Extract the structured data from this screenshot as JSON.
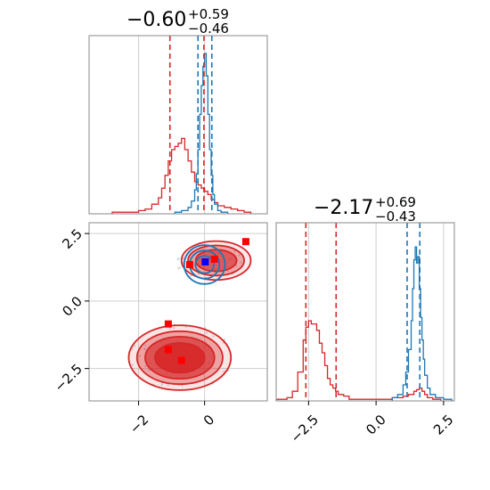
{
  "chart_data": [
    {
      "panel": "top-left",
      "type": "histogram",
      "title_main": "−0.60",
      "title_sup": "+0.59",
      "title_sub": "−0.46",
      "xlim": [
        -3.5,
        1.9
      ],
      "grid": true,
      "x_ticks_vertical_lines": [
        -2,
        0
      ],
      "series": [
        {
          "color": "#d62728",
          "step_x": [
            -2.8,
            -2.4,
            -2.0,
            -1.8,
            -1.6,
            -1.4,
            -1.3,
            -1.2,
            -1.1,
            -1.0,
            -0.9,
            -0.8,
            -0.7,
            -0.6,
            -0.5,
            -0.4,
            -0.3,
            -0.2,
            -0.1,
            0.0,
            0.1,
            0.2,
            0.3,
            0.4,
            0.6,
            0.8,
            1.0,
            1.2,
            1.4
          ],
          "step_h": [
            0.01,
            0.01,
            0.02,
            0.03,
            0.06,
            0.1,
            0.16,
            0.24,
            0.33,
            0.4,
            0.42,
            0.44,
            0.47,
            0.4,
            0.33,
            0.26,
            0.2,
            0.18,
            0.16,
            0.14,
            0.12,
            0.09,
            0.07,
            0.05,
            0.04,
            0.03,
            0.02,
            0.01,
            0
          ]
        },
        {
          "color": "#1f77b4",
          "step_x": [
            -0.9,
            -0.7,
            -0.5,
            -0.4,
            -0.3,
            -0.25,
            -0.2,
            -0.15,
            -0.1,
            -0.05,
            0.0,
            0.05,
            0.1,
            0.15,
            0.2,
            0.25,
            0.3,
            0.4,
            0.5,
            0.7
          ],
          "step_h": [
            0.01,
            0.02,
            0.04,
            0.08,
            0.15,
            0.25,
            0.4,
            0.62,
            0.8,
            0.92,
            1.0,
            0.86,
            0.62,
            0.4,
            0.24,
            0.12,
            0.06,
            0.02,
            0.01,
            0
          ]
        }
      ],
      "vlines": [
        {
          "x": -1.05,
          "color": "#d62728"
        },
        {
          "x": -0.02,
          "color": "#d62728"
        },
        {
          "x": -0.2,
          "color": "#1f77b4"
        },
        {
          "x": 0.22,
          "color": "#1f77b4"
        }
      ]
    },
    {
      "panel": "bottom-left",
      "type": "scatter",
      "xlim": [
        -3.5,
        1.9
      ],
      "ylim": [
        -3.7,
        2.9
      ],
      "grid": true,
      "x_ticks": [
        "−2",
        "0"
      ],
      "x_tick_values": [
        -2,
        0
      ],
      "y_ticks": [
        "2.5",
        "0.0",
        "−2.5"
      ],
      "y_tick_values": [
        2.5,
        0.0,
        -2.5
      ],
      "contours": [
        {
          "color": "#d62728",
          "cx": -0.75,
          "cy": -2.1,
          "rx": [
            1.55,
            1.3,
            1.05,
            0.75
          ],
          "ry": [
            1.2,
            0.98,
            0.78,
            0.55
          ],
          "fill": [
            "rgba(214,39,40,0.12)",
            "rgba(214,39,40,0.35)",
            "rgba(214,39,40,0.65)",
            "rgba(214,39,40,0.9)"
          ]
        },
        {
          "color": "#d62728",
          "cx": 0.35,
          "cy": 1.5,
          "rx": [
            1.05,
            0.85,
            0.62
          ],
          "ry": [
            0.72,
            0.56,
            0.4
          ],
          "fill": [
            "rgba(214,39,40,0.10)",
            "rgba(214,39,40,0.35)",
            "rgba(214,39,40,0.6)"
          ]
        },
        {
          "color": "#1f77b4",
          "cx": 0.0,
          "cy": 1.35,
          "rx": [
            0.62,
            0.45,
            0.28
          ],
          "ry": [
            0.72,
            0.52,
            0.32
          ],
          "fill": [
            "rgba(31,119,180,0)",
            "rgba(31,119,180,0)",
            "rgba(31,119,180,0)"
          ]
        }
      ],
      "points": [
        {
          "x": 1.25,
          "y": 2.2,
          "color": "#ff0000"
        },
        {
          "x": -0.45,
          "y": 1.35,
          "color": "#ff0000"
        },
        {
          "x": 0.3,
          "y": 1.55,
          "color": "#ff0000"
        },
        {
          "x": -1.1,
          "y": -0.85,
          "color": "#ff0000"
        },
        {
          "x": -1.1,
          "y": -1.8,
          "color": "#ff0000"
        },
        {
          "x": -0.7,
          "y": -2.2,
          "color": "#ff0000"
        },
        {
          "x": 0.02,
          "y": 1.45,
          "color": "#0000ff"
        }
      ]
    },
    {
      "panel": "bottom-right",
      "type": "histogram",
      "title_main": "−2.17",
      "title_sup": "+0.69",
      "title_sub": "−0.43",
      "xlim": [
        -3.7,
        2.9
      ],
      "grid": true,
      "x_ticks": [
        "−2.5",
        "0.0",
        "2.5"
      ],
      "x_tick_values": [
        -2.5,
        0.0,
        2.5
      ],
      "series": [
        {
          "color": "#d62728",
          "step_x": [
            -3.7,
            -3.3,
            -3.1,
            -2.9,
            -2.7,
            -2.6,
            -2.5,
            -2.4,
            -2.3,
            -2.2,
            -2.1,
            -2.0,
            -1.9,
            -1.8,
            -1.7,
            -1.6,
            -1.5,
            -1.4,
            -1.2,
            -1.0,
            -0.6,
            0.0,
            0.6,
            1.0,
            1.2,
            1.4,
            1.5,
            1.6,
            1.7,
            1.8,
            1.9,
            2.1,
            2.4
          ],
          "step_h": [
            0.01,
            0.02,
            0.06,
            0.18,
            0.38,
            0.46,
            0.5,
            0.48,
            0.48,
            0.44,
            0.36,
            0.3,
            0.22,
            0.14,
            0.1,
            0.08,
            0.06,
            0.04,
            0.03,
            0.01,
            0.01,
            0.01,
            0.02,
            0.03,
            0.04,
            0.06,
            0.07,
            0.08,
            0.06,
            0.04,
            0.02,
            0.01,
            0
          ]
        },
        {
          "color": "#1f77b4",
          "step_x": [
            0.6,
            0.8,
            1.0,
            1.1,
            1.2,
            1.3,
            1.35,
            1.4,
            1.45,
            1.5,
            1.55,
            1.6,
            1.65,
            1.7,
            1.75,
            1.8,
            1.9,
            2.0,
            2.2,
            2.5,
            2.8
          ],
          "step_h": [
            0.02,
            0.04,
            0.1,
            0.18,
            0.32,
            0.5,
            0.7,
            0.88,
            0.96,
            0.86,
            0.9,
            0.7,
            0.52,
            0.38,
            0.26,
            0.16,
            0.08,
            0.04,
            0.02,
            0.01,
            0
          ]
        }
      ],
      "vlines": [
        {
          "x": -2.6,
          "color": "#d62728"
        },
        {
          "x": -1.48,
          "color": "#d62728"
        },
        {
          "x": 1.15,
          "color": "#1f77b4"
        },
        {
          "x": 1.62,
          "color": "#1f77b4"
        }
      ]
    }
  ],
  "tick_labels": {
    "left_x": [
      "−2",
      "0"
    ],
    "left_y": [
      "2.5",
      "0.0",
      "−2.5"
    ],
    "right_x": [
      "−2.5",
      "0.0",
      "2.5"
    ]
  },
  "titles": {
    "left": {
      "main": "−0.60",
      "sup": "+0.59",
      "sub": "−0.46"
    },
    "right": {
      "main": "−2.17",
      "sup": "+0.69",
      "sub": "−0.43"
    }
  }
}
